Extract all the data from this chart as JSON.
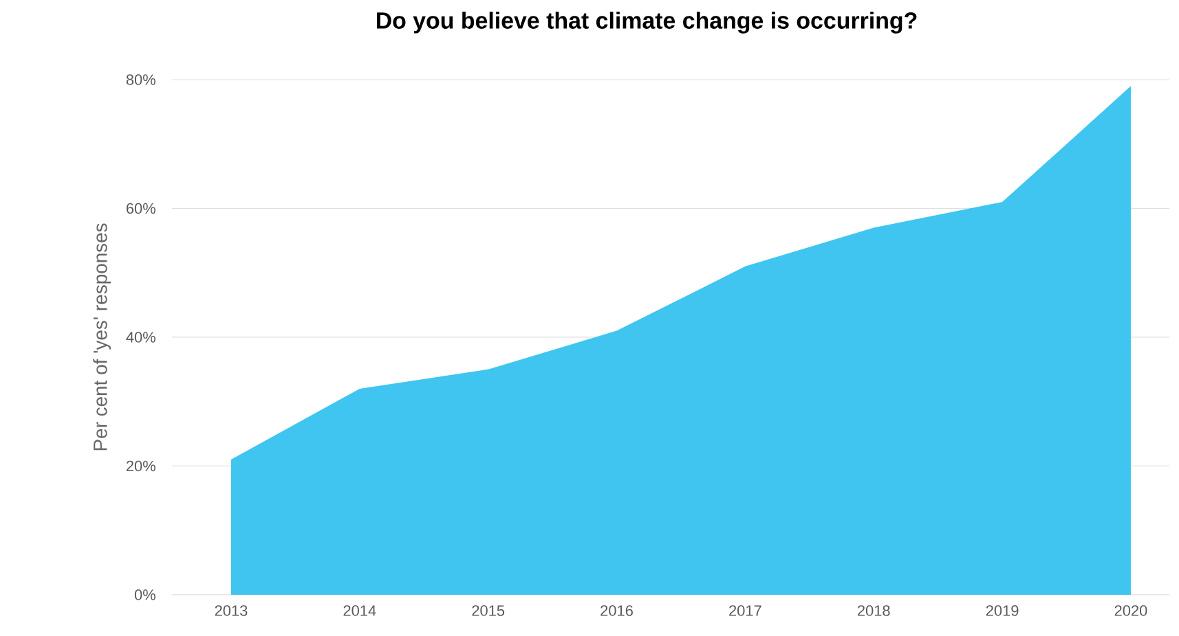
{
  "chart_data": {
    "type": "area",
    "title": "Do you believe that climate change is occurring?",
    "ylabel": "Per cent of 'yes' responses",
    "categories": [
      "2013",
      "2014",
      "2015",
      "2016",
      "2017",
      "2018",
      "2019",
      "2020"
    ],
    "values": [
      21,
      32,
      35,
      41,
      51,
      57,
      61,
      79
    ],
    "color": "#3fc5f0",
    "ylim": [
      0,
      80
    ],
    "yticks": [
      {
        "value": 0,
        "label": "0%"
      },
      {
        "value": 20,
        "label": "20%"
      },
      {
        "value": 40,
        "label": "40%"
      },
      {
        "value": 60,
        "label": "60%"
      },
      {
        "value": 80,
        "label": "80%"
      }
    ],
    "grid": "y"
  }
}
